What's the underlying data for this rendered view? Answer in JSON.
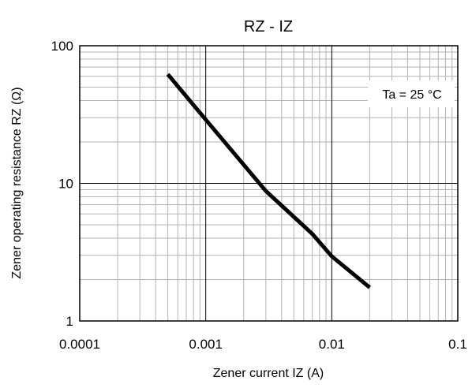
{
  "chart_data": {
    "type": "line",
    "title": "RZ - IZ",
    "xlabel": "Zener current IZ (A)",
    "ylabel": "Zener operating resistance RZ (Ω)",
    "x_scale": "log",
    "y_scale": "log",
    "xlim": [
      0.0001,
      0.1
    ],
    "ylim": [
      1,
      100
    ],
    "grid": true,
    "x_ticks": [
      {
        "value": 0.0001,
        "label": "0.0001"
      },
      {
        "value": 0.001,
        "label": "0.001"
      },
      {
        "value": 0.01,
        "label": "0.01"
      },
      {
        "value": 0.1,
        "label": "0.1"
      }
    ],
    "y_ticks": [
      {
        "value": 1,
        "label": "1"
      },
      {
        "value": 10,
        "label": "10"
      },
      {
        "value": 100,
        "label": "100"
      }
    ],
    "annotation": "Ta = 25 °C",
    "series": [
      {
        "x": [
          0.0005,
          0.001,
          0.003,
          0.007,
          0.01,
          0.02
        ],
        "y": [
          62,
          29,
          8.8,
          4.3,
          2.95,
          1.75
        ]
      }
    ]
  }
}
